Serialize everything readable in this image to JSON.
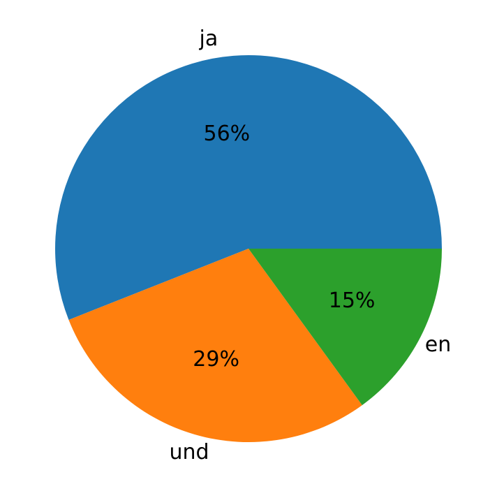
{
  "chart_data": {
    "type": "pie",
    "categories": [
      "ja",
      "und",
      "en"
    ],
    "values": [
      56,
      29,
      15
    ],
    "value_labels": [
      "56%",
      "29%",
      "15%"
    ],
    "colors": [
      "#1f77b4",
      "#ff7f0e",
      "#2ca02c"
    ],
    "start_angle": 0
  }
}
